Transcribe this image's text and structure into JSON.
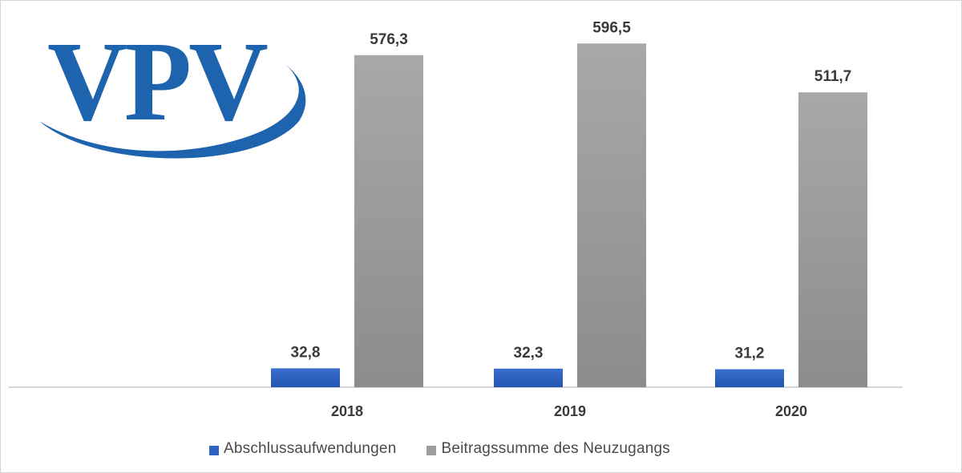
{
  "logo": {
    "text": "VPV",
    "color": "#1d63ad"
  },
  "chart_data": {
    "type": "bar",
    "categories": [
      "2018",
      "2019",
      "2020"
    ],
    "series": [
      {
        "name": "Abschlussaufwendungen",
        "values": [
          32.8,
          32.3,
          31.2
        ],
        "labels": [
          "32,8",
          "32,3",
          "31,2"
        ],
        "color": "#2f63c2"
      },
      {
        "name": "Beitragssumme des Neuzugangs",
        "values": [
          576.3,
          596.5,
          511.7
        ],
        "labels": [
          "576,3",
          "596,5",
          "511,7"
        ],
        "color": "#9e9e9e"
      }
    ],
    "title": "",
    "xlabel": "",
    "ylabel": "",
    "ylim": [
      0,
      640
    ],
    "grid": false,
    "legend": "bottom"
  }
}
